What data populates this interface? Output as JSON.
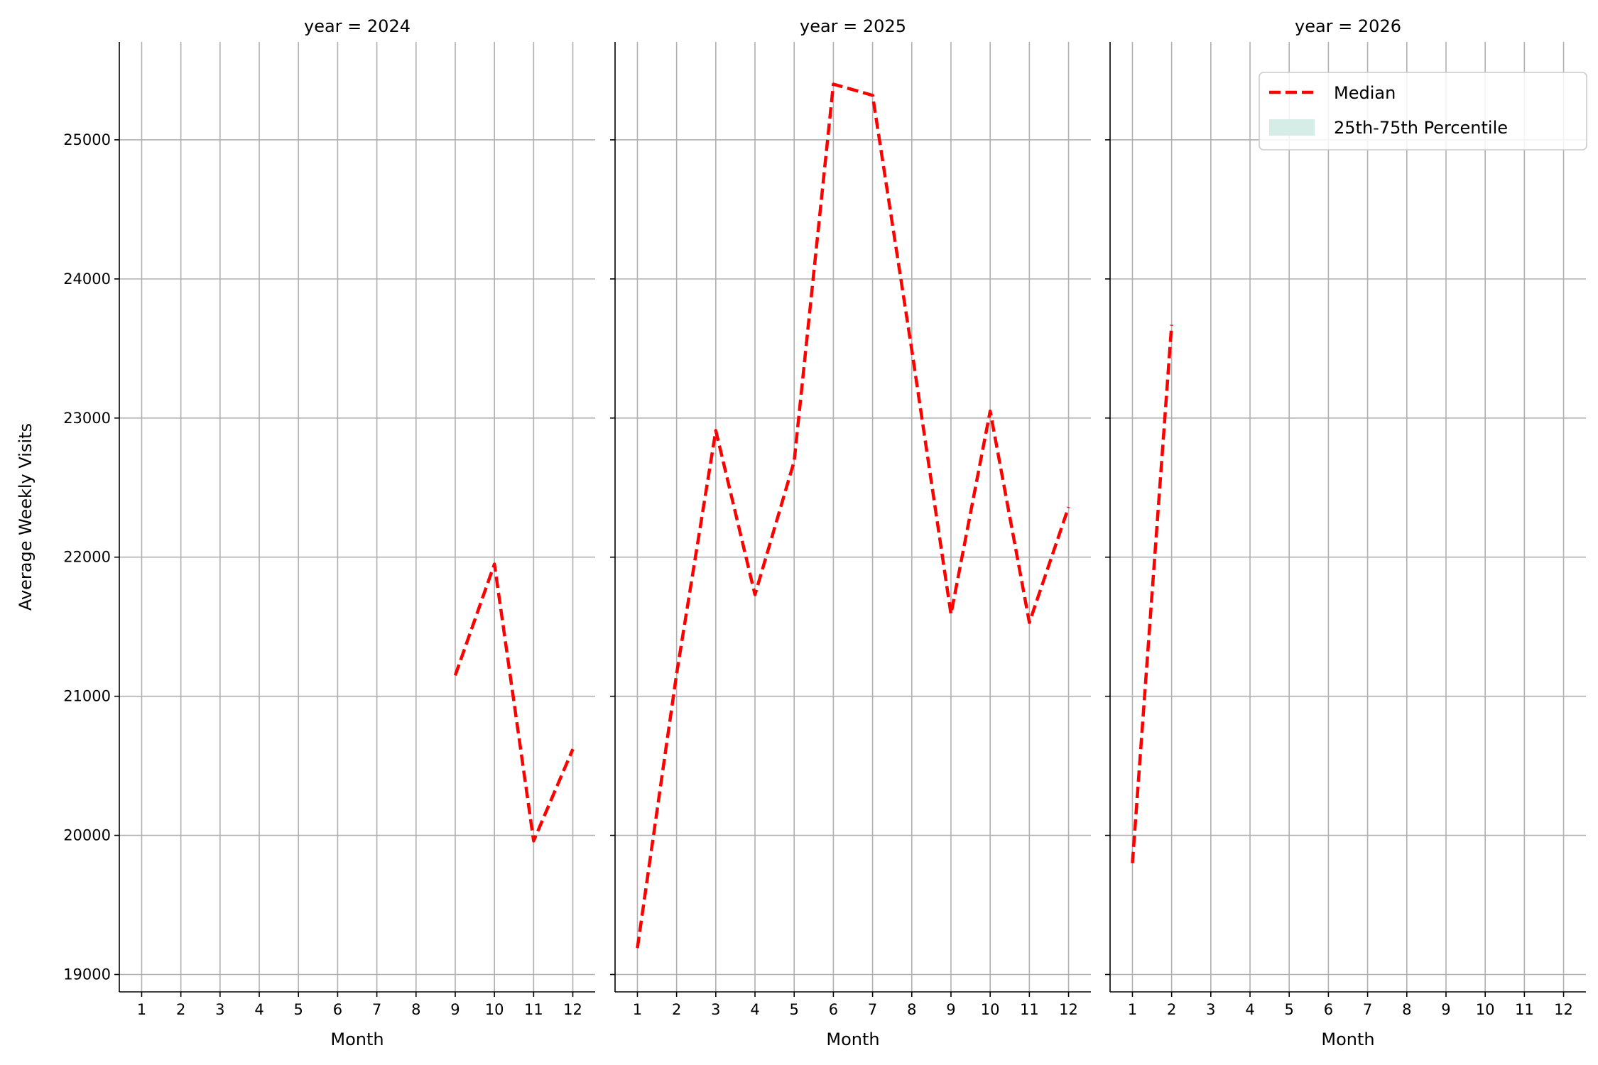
{
  "chart_data": {
    "type": "line",
    "facet_variable": "year",
    "ylabel": "Average Weekly Visits",
    "xlabel": "Month",
    "ylim": [
      18875,
      25704
    ],
    "xlim": [
      0.43,
      12.57
    ],
    "y_ticks": [
      19000,
      20000,
      21000,
      22000,
      23000,
      24000,
      25000
    ],
    "x_ticks": [
      1,
      2,
      3,
      4,
      5,
      6,
      7,
      8,
      9,
      10,
      11,
      12
    ],
    "grid": true,
    "legend": {
      "placement": "top-right (third panel)",
      "entries": [
        {
          "label": "Median",
          "style": "dashed-line",
          "color": "#ff0000"
        },
        {
          "label": "25th-75th Percentile",
          "style": "filled-patch",
          "color": "#d5ede6"
        }
      ]
    },
    "panels": [
      {
        "title": "year = 2024",
        "series": [
          {
            "name": "Median",
            "x": [
              9,
              10,
              11,
              12
            ],
            "y": [
              21150,
              21950,
              19960,
              20620
            ]
          }
        ]
      },
      {
        "title": "year = 2025",
        "series": [
          {
            "name": "Median",
            "x": [
              1,
              2,
              3,
              4,
              5,
              6,
              7,
              8,
              9,
              10,
              11,
              12
            ],
            "y": [
              19190,
              21160,
              22910,
              21730,
              22690,
              25400,
              25320,
              23490,
              21590,
              23050,
              21530,
              22360
            ]
          }
        ]
      },
      {
        "title": "year = 2026",
        "series": [
          {
            "name": "Median",
            "x": [
              1,
              2
            ],
            "y": [
              19800,
              23670
            ]
          }
        ]
      }
    ]
  }
}
